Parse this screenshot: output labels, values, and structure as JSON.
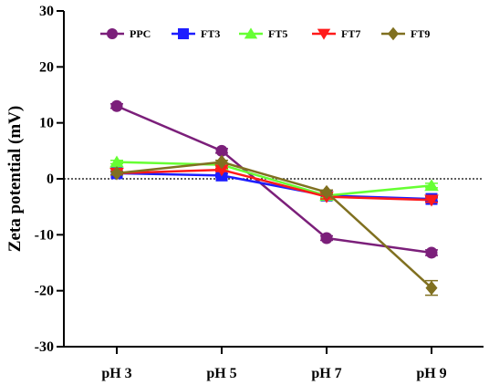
{
  "chart_data": {
    "type": "line",
    "title": "",
    "xlabel": "",
    "ylabel": "Zeta potential (mV)",
    "categories": [
      "pH 3",
      "pH 5",
      "pH 7",
      "pH 9"
    ],
    "ylim": [
      -30,
      30
    ],
    "yticks": [
      -30,
      -20,
      -10,
      0,
      10,
      20,
      30
    ],
    "reference_line": 0,
    "legend_position": "top",
    "series": [
      {
        "name": "PPC",
        "values": [
          13,
          5,
          -10.6,
          -13.2
        ],
        "error": [
          0.4,
          0.4,
          0.4,
          0.5
        ],
        "color": "#7B1F7A",
        "marker": "circle"
      },
      {
        "name": "FT3",
        "values": [
          1,
          0.6,
          -3,
          -3.6
        ],
        "error": [
          0.3,
          0.3,
          0.4,
          0.4
        ],
        "color": "#1E1EFF",
        "marker": "square"
      },
      {
        "name": "FT5",
        "values": [
          3,
          2.5,
          -3,
          -1.2
        ],
        "error": [
          0.3,
          0.3,
          0.4,
          0.4
        ],
        "color": "#66FF33",
        "marker": "triangle-up"
      },
      {
        "name": "FT7",
        "values": [
          1,
          1.6,
          -3.2,
          -3.8
        ],
        "error": [
          0.3,
          0.3,
          0.4,
          0.4
        ],
        "color": "#FF1A1A",
        "marker": "triangle-down"
      },
      {
        "name": "FT9",
        "values": [
          1,
          3,
          -2.4,
          -19.5
        ],
        "error": [
          0.3,
          0.3,
          0.4,
          1.3
        ],
        "color": "#807020",
        "marker": "diamond"
      }
    ]
  }
}
